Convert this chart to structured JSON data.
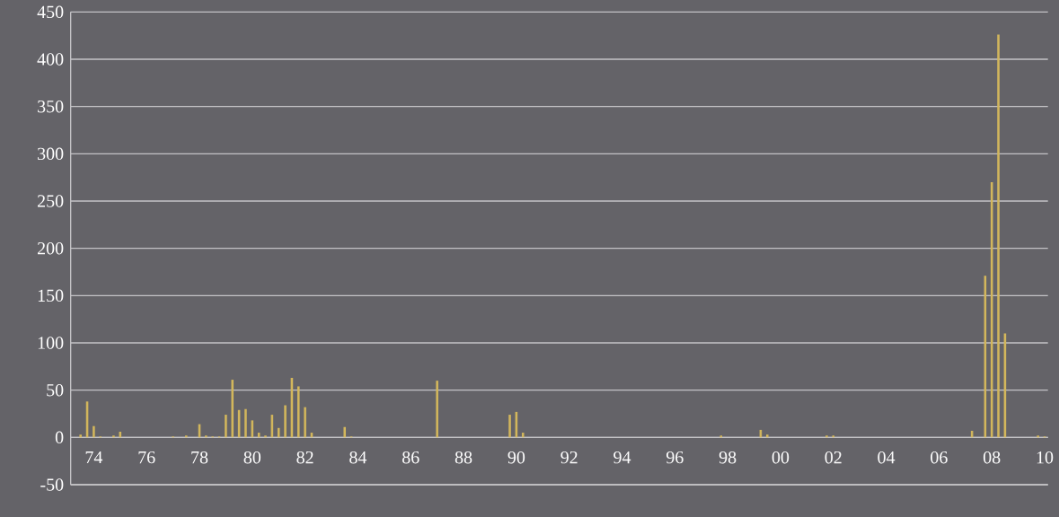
{
  "chart_data": {
    "type": "bar",
    "color": "#d2b65c",
    "categories": [
      null,
      null,
      null,
      "74",
      null,
      null,
      null,
      null,
      null,
      null,
      null,
      "76",
      null,
      null,
      null,
      null,
      null,
      null,
      null,
      "78",
      null,
      null,
      null,
      null,
      null,
      null,
      null,
      "80",
      null,
      null,
      null,
      null,
      null,
      null,
      null,
      "82",
      null,
      null,
      null,
      null,
      null,
      null,
      null,
      "84",
      null,
      null,
      null,
      null,
      null,
      null,
      null,
      "86",
      null,
      null,
      null,
      null,
      null,
      null,
      null,
      "88",
      null,
      null,
      null,
      null,
      null,
      null,
      null,
      "90",
      null,
      null,
      null,
      null,
      null,
      null,
      null,
      "92",
      null,
      null,
      null,
      null,
      null,
      null,
      null,
      "94",
      null,
      null,
      null,
      null,
      null,
      null,
      null,
      "96",
      null,
      null,
      null,
      null,
      null,
      null,
      null,
      "98",
      null,
      null,
      null,
      null,
      null,
      null,
      null,
      "00",
      null,
      null,
      null,
      null,
      null,
      null,
      null,
      "02",
      null,
      null,
      null,
      null,
      null,
      null,
      null,
      "04",
      null,
      null,
      null,
      null,
      null,
      null,
      null,
      "06",
      null,
      null,
      null,
      null,
      null,
      null,
      null,
      "08",
      null,
      null,
      null,
      null,
      null,
      null,
      null,
      "10"
    ],
    "values": [
      0,
      3,
      38,
      12,
      1,
      0,
      2,
      6,
      0,
      0,
      0,
      0,
      0,
      0,
      0,
      1,
      0,
      2,
      0,
      14,
      2,
      1,
      1,
      24,
      61,
      29,
      30,
      18,
      5,
      2,
      24,
      10,
      34,
      63,
      54,
      32,
      5,
      0,
      0,
      0,
      0,
      11,
      1,
      0,
      0,
      0,
      0,
      0,
      0,
      0,
      0,
      0,
      0,
      0,
      0,
      60,
      0,
      0,
      0,
      0,
      0,
      0,
      0,
      0,
      0,
      0,
      24,
      27,
      5,
      0,
      0,
      0,
      0,
      0,
      0,
      0,
      0,
      0,
      0,
      0,
      0,
      0,
      0,
      0,
      0,
      0,
      0,
      0,
      0,
      0,
      0,
      0,
      0,
      0,
      0,
      0,
      0,
      0,
      2,
      0,
      0,
      0,
      0,
      0,
      8,
      3,
      0,
      0,
      0,
      0,
      0,
      0,
      0,
      0,
      2,
      2,
      0,
      0,
      0,
      0,
      0,
      0,
      0,
      0,
      0,
      0,
      0,
      0,
      0,
      0,
      0,
      0,
      0,
      0,
      0,
      0,
      7,
      0,
      171,
      270,
      426,
      110,
      0,
      0,
      0,
      0,
      2,
      1
    ],
    "ylim": [
      -50,
      450
    ],
    "yticks": [
      -50,
      0,
      50,
      100,
      150,
      200,
      250,
      300,
      350,
      400,
      450
    ],
    "grid": "y"
  }
}
